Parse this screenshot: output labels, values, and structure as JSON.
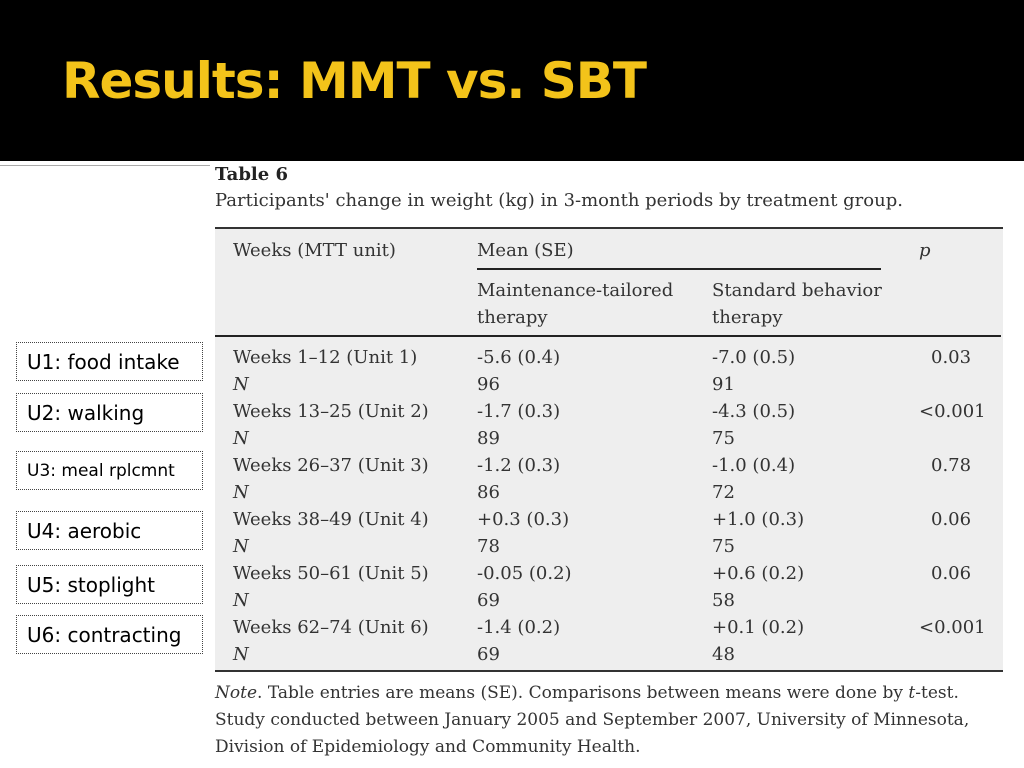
{
  "slide": {
    "title": "Results: MMT vs. SBT"
  },
  "units": [
    "U1: food intake",
    "U2: walking",
    "U3: meal rplcmnt",
    "U4: aerobic",
    "U5: stoplight",
    "U6: contracting"
  ],
  "table": {
    "label": "Table 6",
    "caption": "Participants' change in weight (kg) in 3-month periods by treatment group.",
    "headers": {
      "weeks": "Weeks (MTT unit)",
      "mean": "Mean (SE)",
      "p": "p",
      "mtt_line1": "Maintenance-tailored",
      "mtt_line2": "therapy",
      "sbt_line1": "Standard behavior",
      "sbt_line2": "therapy"
    },
    "rows": [
      {
        "weeks": "Weeks 1–12 (Unit 1)",
        "mtt": "-5.6 (0.4)",
        "sbt": "-7.0 (0.5)",
        "p": "0.03",
        "n_label": "N",
        "mtt_n": "96",
        "sbt_n": "91"
      },
      {
        "weeks": "Weeks 13–25 (Unit 2)",
        "mtt": "-1.7 (0.3)",
        "sbt": "-4.3 (0.5)",
        "p": "<0.001",
        "n_label": "N",
        "mtt_n": "89",
        "sbt_n": "75"
      },
      {
        "weeks": "Weeks 26–37 (Unit 3)",
        "mtt": "-1.2 (0.3)",
        "sbt": "-1.0 (0.4)",
        "p": "0.78",
        "n_label": "N",
        "mtt_n": "86",
        "sbt_n": "72"
      },
      {
        "weeks": "Weeks 38–49 (Unit 4)",
        "mtt": "+0.3 (0.3)",
        "sbt": "+1.0 (0.3)",
        "p": "0.06",
        "n_label": "N",
        "mtt_n": "78",
        "sbt_n": "75"
      },
      {
        "weeks": "Weeks 50–61 (Unit 5)",
        "mtt": "-0.05 (0.2)",
        "sbt": "+0.6 (0.2)",
        "p": "0.06",
        "n_label": "N",
        "mtt_n": "69",
        "sbt_n": "58"
      },
      {
        "weeks": "Weeks 62–74 (Unit 6)",
        "mtt": "-1.4 (0.2)",
        "sbt": "+0.1 (0.2)",
        "p": "<0.001",
        "n_label": "N",
        "mtt_n": "69",
        "sbt_n": "48"
      }
    ],
    "note": {
      "prefix": "Note",
      "text1": ". Table entries are means (SE). Comparisons between means were done by ",
      "t": "t",
      "text2": "-test.",
      "line2": "Study conducted between January 2005 and September 2007, University of Minnesota,",
      "line3": "Division of Epidemiology and Community Health."
    }
  }
}
